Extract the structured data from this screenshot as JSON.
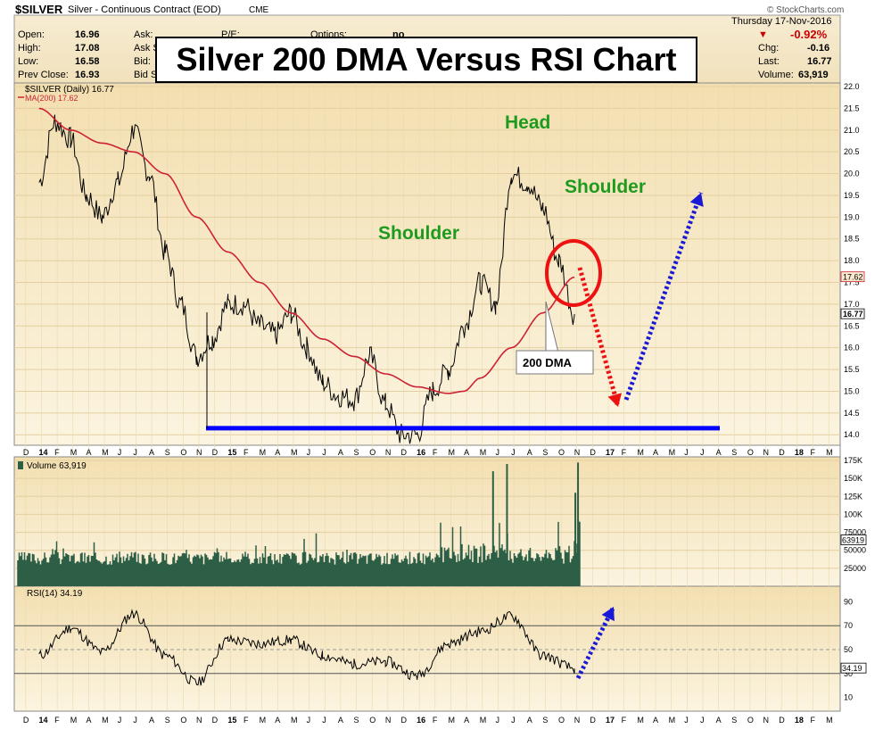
{
  "header": {
    "symbol": "$SILVER",
    "description": "Silver - Continuous Contract (EOD)",
    "exchange": "CME",
    "watermark": "© StockCharts.com",
    "date_line": "Thursday 17-Nov-2016",
    "quote": {
      "open_label": "Open:",
      "open": "16.96",
      "high_label": "High:",
      "high": "17.08",
      "low_label": "Low:",
      "low": "16.58",
      "prev_label": "Prev Close:",
      "prev": "16.93",
      "ask_label": "Ask:",
      "ask_size_label": "Ask S",
      "bid_label": "Bid:",
      "bid_size_label": "Bid S",
      "pe_label": "P/E:",
      "options_label": "Options:",
      "options_value": "no",
      "pct_change": "-0.92%",
      "chg_label": "Chg:",
      "chg": "-0.16",
      "last_label": "Last:",
      "last": "16.77",
      "volume_label": "Volume:",
      "volume": "63,919"
    },
    "arrow_color": "#cc0000"
  },
  "title": "Silver 200 DMA Versus RSI Chart",
  "chart_data": [
    {
      "type": "line",
      "panel": "price",
      "legend": [
        "$SILVER (Daily) 16.77",
        "MA(200) 17.62"
      ],
      "series": [
        {
          "name": "$SILVER (Daily)",
          "color": "#000000",
          "x": [
            "2014-01",
            "2014-02",
            "2014-03",
            "2014-04",
            "2014-05",
            "2014-06",
            "2014-07",
            "2014-08",
            "2014-09",
            "2014-10",
            "2014-11",
            "2014-12",
            "2015-01",
            "2015-02",
            "2015-03",
            "2015-04",
            "2015-05",
            "2015-06",
            "2015-07",
            "2015-08",
            "2015-09",
            "2015-10",
            "2015-11",
            "2015-12",
            "2016-01",
            "2016-02",
            "2016-03",
            "2016-04",
            "2016-05",
            "2016-06",
            "2016-07",
            "2016-08",
            "2016-09",
            "2016-10",
            "2016-11"
          ],
          "values": [
            19.8,
            21.2,
            20.8,
            19.5,
            19.0,
            19.8,
            21.0,
            20.0,
            18.2,
            17.0,
            15.8,
            16.2,
            17.0,
            17.0,
            16.5,
            16.3,
            16.8,
            16.0,
            15.2,
            14.9,
            14.8,
            15.8,
            14.7,
            14.0,
            14.0,
            15.0,
            15.5,
            16.5,
            17.5,
            17.0,
            20.0,
            19.8,
            19.2,
            18.0,
            16.77
          ]
        },
        {
          "name": "MA(200)",
          "color": "#cc2233",
          "x": [
            "2014-01",
            "2014-03",
            "2014-05",
            "2014-07",
            "2014-09",
            "2014-11",
            "2015-01",
            "2015-03",
            "2015-05",
            "2015-07",
            "2015-09",
            "2015-11",
            "2016-01",
            "2016-03",
            "2016-04",
            "2016-05",
            "2016-07",
            "2016-09",
            "2016-11"
          ],
          "values": [
            21.5,
            21.0,
            20.7,
            20.5,
            20.0,
            19.0,
            18.2,
            17.5,
            16.8,
            16.2,
            15.8,
            15.4,
            15.1,
            14.95,
            15.0,
            15.3,
            16.0,
            16.8,
            17.62
          ]
        }
      ],
      "ylim": [
        13.8,
        22.0
      ],
      "y_ticks": [
        "14.0",
        "14.5",
        "15.0",
        "15.5",
        "16.0",
        "16.5",
        "17.0",
        "17.5",
        "18.0",
        "18.5",
        "19.0",
        "19.5",
        "20.0",
        "20.5",
        "21.0",
        "21.5",
        "22.0"
      ],
      "price_tags": [
        "17.62",
        "16.77"
      ],
      "annotations": {
        "head": "Head",
        "left_shoulder": "Shoulder",
        "right_shoulder": "Shoulder",
        "dma_callout": "200 DMA"
      },
      "support_level": 14.15
    },
    {
      "type": "bar",
      "panel": "volume",
      "legend": "Volume 63,919",
      "y_ticks": [
        "25000",
        "50000",
        "75000",
        "100K",
        "125K",
        "150K",
        "175K"
      ],
      "ylim": [
        0,
        175000
      ],
      "last_tag": "63919",
      "color": "#2d5e46"
    },
    {
      "type": "line",
      "panel": "rsi",
      "legend": "RSI(14) 34.19",
      "ylim": [
        0,
        100
      ],
      "y_ticks": [
        "10",
        "30",
        "50",
        "70",
        "90"
      ],
      "levels": [
        30,
        50,
        70
      ],
      "last_tag": "34.19",
      "x": [
        "2014-01",
        "2014-03",
        "2014-05",
        "2014-07",
        "2014-09",
        "2014-11",
        "2015-01",
        "2015-03",
        "2015-05",
        "2015-07",
        "2015-09",
        "2015-11",
        "2016-01",
        "2016-03",
        "2016-05",
        "2016-07",
        "2016-09",
        "2016-11"
      ],
      "values": [
        45,
        68,
        48,
        80,
        45,
        22,
        58,
        55,
        58,
        45,
        38,
        40,
        28,
        55,
        65,
        78,
        45,
        34.19
      ]
    }
  ],
  "x_axis_labels": [
    "D",
    "14",
    "F",
    "M",
    "A",
    "M",
    "J",
    "J",
    "A",
    "S",
    "O",
    "N",
    "D",
    "15",
    "F",
    "M",
    "A",
    "M",
    "J",
    "J",
    "A",
    "S",
    "O",
    "N",
    "D",
    "16",
    "F",
    "M",
    "A",
    "M",
    "J",
    "J",
    "A",
    "S",
    "O",
    "N",
    "D",
    "17",
    "F",
    "M",
    "A",
    "M",
    "J",
    "J",
    "A",
    "S",
    "O",
    "N",
    "D",
    "18",
    "F",
    "M"
  ],
  "colors": {
    "panel_bg": "#f4e5c2",
    "price_line": "#000000",
    "ma_line": "#cc2233",
    "support_line": "#0000ff",
    "annotation_green": "#1e9b1e",
    "down_arrow": "#ee1111",
    "up_arrow": "#1a1ad6",
    "volume_fill": "#2d5e46"
  }
}
